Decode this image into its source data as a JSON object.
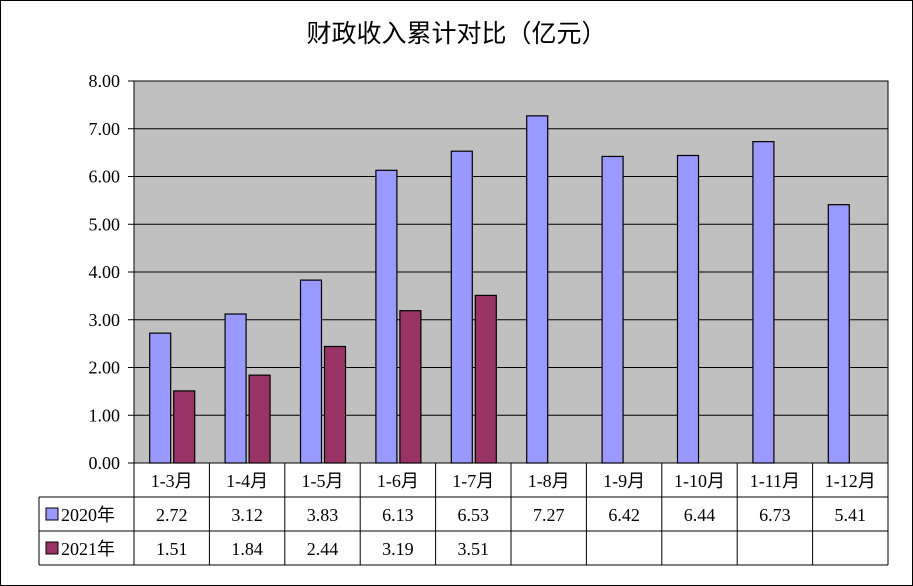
{
  "chart_data": {
    "type": "bar",
    "title": "财政收入累计对比（亿元）",
    "categories": [
      "1-3月",
      "1-4月",
      "1-5月",
      "1-6月",
      "1-7月",
      "1-8月",
      "1-9月",
      "1-10月",
      "1-11月",
      "1-12月"
    ],
    "series": [
      {
        "name": "2020年",
        "color": "#9999ff",
        "values": [
          2.72,
          3.12,
          3.83,
          6.13,
          6.53,
          7.27,
          6.42,
          6.44,
          6.73,
          5.41
        ],
        "labels": [
          "2.72",
          "3.12",
          "3.83",
          "6.13",
          "6.53",
          "7.27",
          "6.42",
          "6.44",
          "6.73",
          "5.41"
        ]
      },
      {
        "name": "2021年",
        "color": "#993366",
        "values": [
          1.51,
          1.84,
          2.44,
          3.19,
          3.51,
          null,
          null,
          null,
          null,
          null
        ],
        "labels": [
          "1.51",
          "1.84",
          "2.44",
          "3.19",
          "3.51",
          "",
          "",
          "",
          "",
          ""
        ]
      }
    ],
    "y_ticks": [
      "0.00",
      "1.00",
      "2.00",
      "3.00",
      "4.00",
      "5.00",
      "6.00",
      "7.00",
      "8.00"
    ],
    "ylim": [
      0,
      8
    ],
    "grid": true,
    "plot_background": "#c0c0c0",
    "legend": "data-table"
  }
}
